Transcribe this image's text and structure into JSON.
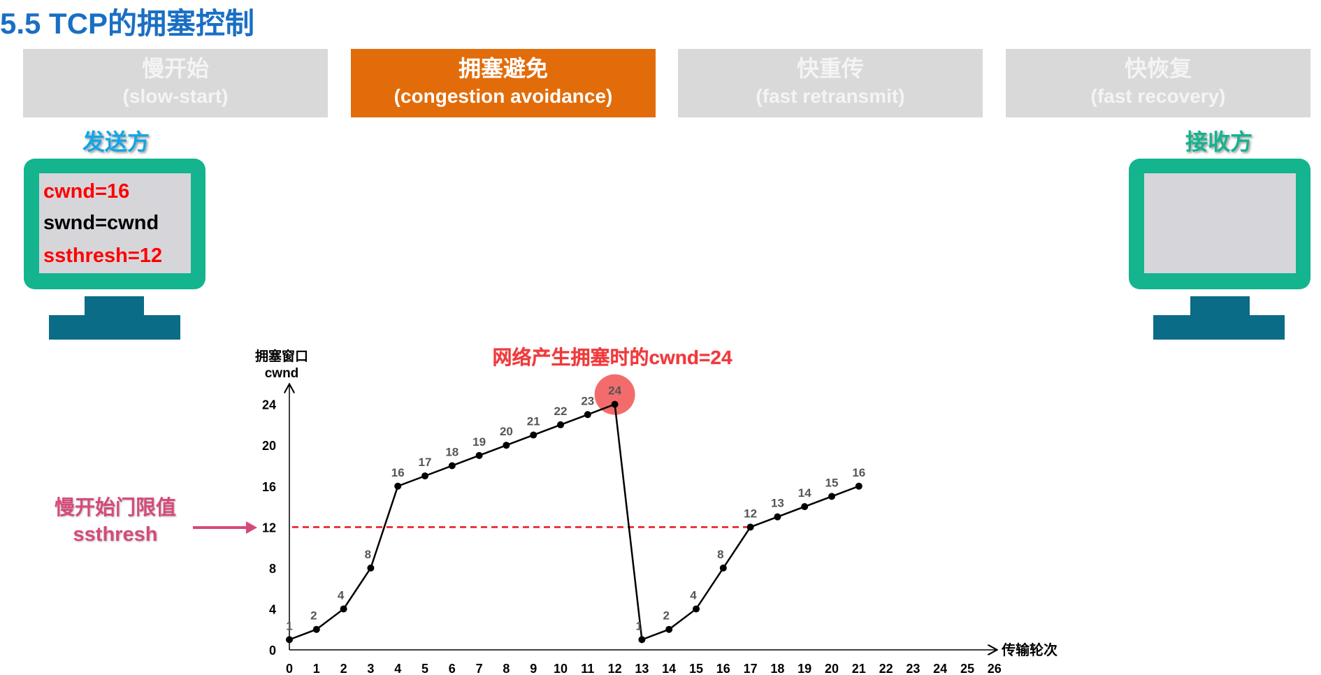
{
  "title": "5.5 TCP的拥塞控制",
  "phases": [
    {
      "zh": "慢开始",
      "en": "(slow-start)",
      "active": false
    },
    {
      "zh": "拥塞避免",
      "en": "(congestion avoidance)",
      "active": true
    },
    {
      "zh": "快重传",
      "en": "(fast retransmit)",
      "active": false
    },
    {
      "zh": "快恢复",
      "en": "(fast recovery)",
      "active": false
    }
  ],
  "sender": {
    "label": "发送方",
    "lines": [
      "cwnd=16",
      "swnd=cwnd",
      "ssthresh=12"
    ]
  },
  "receiver": {
    "label": "接收方"
  },
  "colors": {
    "title": "#1a6fc4",
    "active_phase": "#e36c0a",
    "monitor": "#13b48e",
    "stand": "#0b6c87",
    "threshold": "#e8161b",
    "ssthresh_label": "#d64a7a",
    "sender_label": "#12a6e6",
    "receiver_label": "#13b48e"
  },
  "annotations": {
    "congestion": "网络产生拥塞时的cwnd=24",
    "threshold_label_zh": "慢开始门限值",
    "threshold_label_en": "ssthresh"
  },
  "chart_data": {
    "type": "line",
    "ylabel": [
      "拥塞窗口",
      "cwnd"
    ],
    "xlabel": "传输轮次",
    "x_ticks": [
      0,
      1,
      2,
      3,
      4,
      5,
      6,
      7,
      8,
      9,
      10,
      11,
      12,
      13,
      14,
      15,
      16,
      17,
      18,
      19,
      20,
      21,
      22,
      23,
      24,
      25,
      26
    ],
    "y_ticks": [
      0,
      4,
      8,
      12,
      16,
      20,
      24
    ],
    "xlim": [
      0,
      26
    ],
    "ylim": [
      0,
      24
    ],
    "x": [
      0,
      1,
      2,
      3,
      4,
      5,
      6,
      7,
      8,
      9,
      10,
      11,
      12,
      13,
      14,
      15,
      16,
      17,
      18,
      19,
      20,
      21
    ],
    "y": [
      1,
      2,
      4,
      8,
      16,
      17,
      18,
      19,
      20,
      21,
      22,
      23,
      24,
      1,
      2,
      4,
      8,
      12,
      13,
      14,
      15,
      16
    ],
    "threshold": 12,
    "highlight": {
      "x": 12,
      "y": 24
    }
  }
}
